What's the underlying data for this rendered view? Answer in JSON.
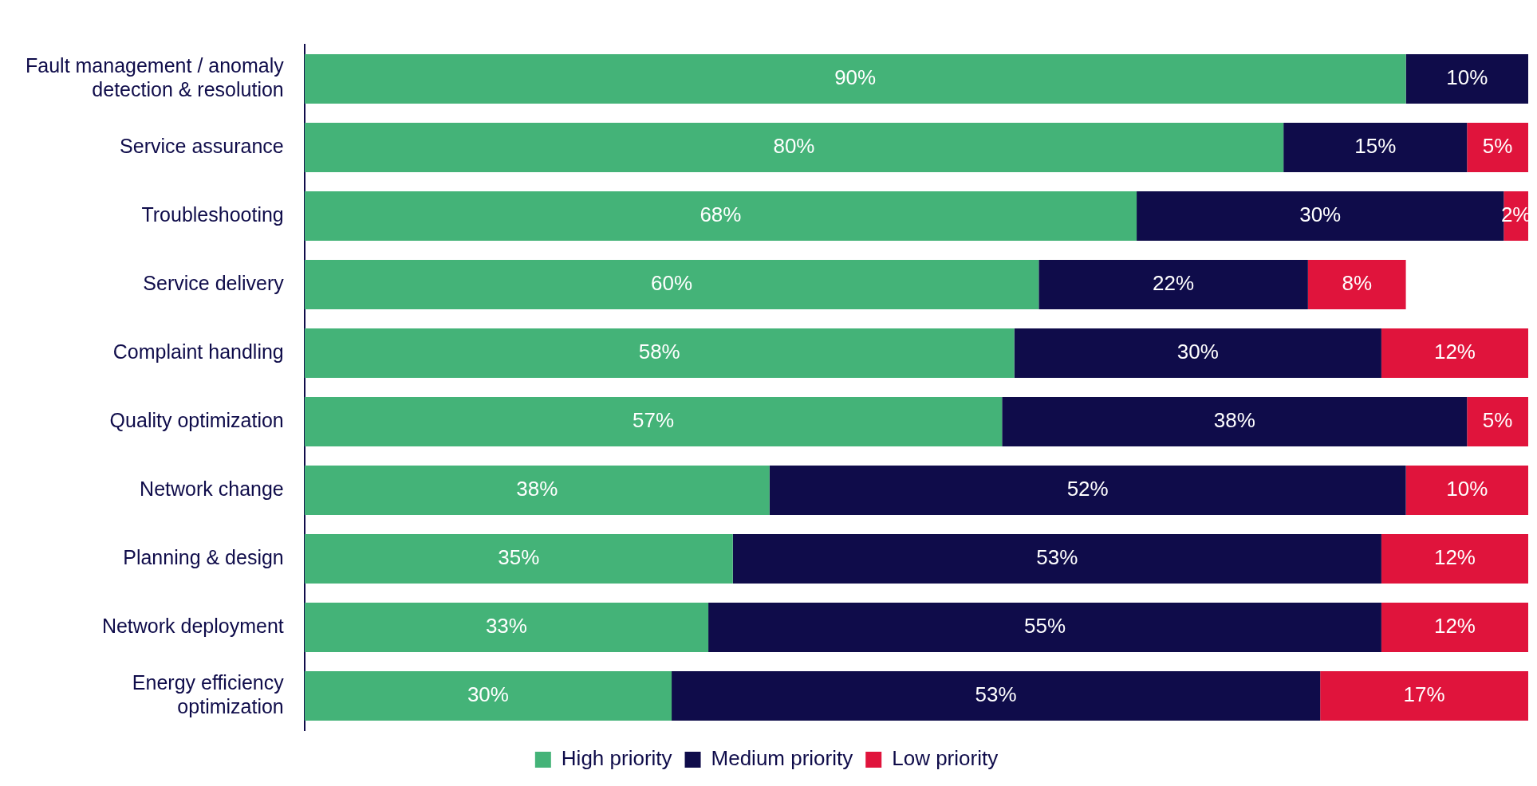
{
  "chart_data": {
    "type": "bar",
    "orientation": "horizontal",
    "stacked": true,
    "legend": "bottom",
    "grid": false,
    "tick_labels": "y",
    "xlim": [
      0,
      100
    ],
    "categories": [
      "Fault management / anomaly detection & resolution",
      "Service assurance",
      "Troubleshooting",
      "Service delivery",
      "Complaint handling",
      "Quality optimization",
      "Network change",
      "Planning & design",
      "Network deployment",
      "Energy efficiency optimization"
    ],
    "series": [
      {
        "name": "High priority",
        "color": "#44b378",
        "values": [
          90,
          80,
          68,
          60,
          58,
          57,
          38,
          35,
          33,
          30
        ],
        "value_labels": [
          "90%",
          "80%",
          "68%",
          "60%",
          "58%",
          "57%",
          "38%",
          "35%",
          "33%",
          "30%"
        ]
      },
      {
        "name": "Medium priority",
        "color": "#0f0c4a",
        "values": [
          10,
          15,
          30,
          22,
          30,
          38,
          52,
          53,
          55,
          53
        ],
        "value_labels": [
          "10%",
          "15%",
          "30%",
          "22%",
          "30%",
          "38%",
          "52%",
          "53%",
          "55%",
          "53%"
        ]
      },
      {
        "name": "Low priority",
        "color": "#e0143c",
        "values": [
          null,
          5,
          2,
          8,
          12,
          5,
          10,
          12,
          12,
          17
        ],
        "value_labels": [
          null,
          "5%",
          "2%",
          "8%",
          "12%",
          "5%",
          "10%",
          "12%",
          "12%",
          "17%"
        ]
      }
    ]
  }
}
